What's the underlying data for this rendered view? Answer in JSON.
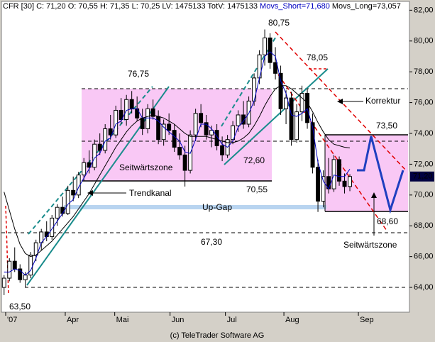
{
  "chart_data": {
    "type": "candlestick",
    "title": "CFR [30] C: 71,20 O: 70,55 H: 71,35 L: 70,25 LV: 1475133 TotV: 1475133",
    "ohlc": [
      [
        64.0,
        64.8,
        63.5,
        64.6
      ],
      [
        64.6,
        65.9,
        64.4,
        65.7
      ],
      [
        65.7,
        66.6,
        65.0,
        65.2
      ],
      [
        65.2,
        65.5,
        64.3,
        64.5
      ],
      [
        64.5,
        65.0,
        64.0,
        64.8
      ],
      [
        64.8,
        66.3,
        64.6,
        66.1
      ],
      [
        66.1,
        67.1,
        65.7,
        66.9
      ],
      [
        66.9,
        67.8,
        66.4,
        67.6
      ],
      [
        67.6,
        68.3,
        67.0,
        67.3
      ],
      [
        67.3,
        68.7,
        67.1,
        68.5
      ],
      [
        68.5,
        69.4,
        68.0,
        69.2
      ],
      [
        69.2,
        69.9,
        68.6,
        68.8
      ],
      [
        68.8,
        70.6,
        68.7,
        70.3
      ],
      [
        70.3,
        71.2,
        69.6,
        70.0
      ],
      [
        70.0,
        71.5,
        69.8,
        71.3
      ],
      [
        71.3,
        72.4,
        70.9,
        72.1
      ],
      [
        72.1,
        72.9,
        71.4,
        71.8
      ],
      [
        71.8,
        73.6,
        71.6,
        73.3
      ],
      [
        73.3,
        74.0,
        72.6,
        72.9
      ],
      [
        72.9,
        74.6,
        72.7,
        74.3
      ],
      [
        74.3,
        75.2,
        73.6,
        73.9
      ],
      [
        73.9,
        75.8,
        73.7,
        75.5
      ],
      [
        75.5,
        76.3,
        74.6,
        74.9
      ],
      [
        74.9,
        76.5,
        74.5,
        76.2
      ],
      [
        76.2,
        76.75,
        75.3,
        75.6
      ],
      [
        75.6,
        76.4,
        74.8,
        75.0
      ],
      [
        75.0,
        75.6,
        73.9,
        74.3
      ],
      [
        74.3,
        75.9,
        74.0,
        75.6
      ],
      [
        75.6,
        76.2,
        74.9,
        75.1
      ],
      [
        75.1,
        75.5,
        73.3,
        73.6
      ],
      [
        73.6,
        74.9,
        73.2,
        74.6
      ],
      [
        74.6,
        75.3,
        73.9,
        74.2
      ],
      [
        74.2,
        74.6,
        72.8,
        73.1
      ],
      [
        73.1,
        74.0,
        72.3,
        72.6
      ],
      [
        72.6,
        73.2,
        70.55,
        71.6
      ],
      [
        71.6,
        74.2,
        71.4,
        73.9
      ],
      [
        73.9,
        75.6,
        73.5,
        75.3
      ],
      [
        75.3,
        75.9,
        74.4,
        74.7
      ],
      [
        74.7,
        75.2,
        73.6,
        73.9
      ],
      [
        73.9,
        74.5,
        73.1,
        74.2
      ],
      [
        74.2,
        74.6,
        72.9,
        73.2
      ],
      [
        73.2,
        73.8,
        72.2,
        72.6
      ],
      [
        72.6,
        73.9,
        72.4,
        73.6
      ],
      [
        73.6,
        74.8,
        73.3,
        74.5
      ],
      [
        74.5,
        75.5,
        74.1,
        75.2
      ],
      [
        75.2,
        76.1,
        74.3,
        74.6
      ],
      [
        74.6,
        76.4,
        74.4,
        76.1
      ],
      [
        76.1,
        77.9,
        75.8,
        77.6
      ],
      [
        77.6,
        79.4,
        77.2,
        79.1
      ],
      [
        79.1,
        80.75,
        78.4,
        80.2
      ],
      [
        80.2,
        80.5,
        78.2,
        78.6
      ],
      [
        78.6,
        79.6,
        77.5,
        77.9
      ],
      [
        77.9,
        78.4,
        75.2,
        75.6
      ],
      [
        75.6,
        76.8,
        74.6,
        76.3
      ],
      [
        76.3,
        76.7,
        73.2,
        73.6
      ],
      [
        73.6,
        75.9,
        73.4,
        75.4
      ],
      [
        75.4,
        77.1,
        74.8,
        76.6
      ],
      [
        76.6,
        76.9,
        74.3,
        74.7
      ],
      [
        74.7,
        75.3,
        71.4,
        71.8
      ],
      [
        71.8,
        72.3,
        68.9,
        69.6
      ],
      [
        69.6,
        71.6,
        69.2,
        71.2
      ],
      [
        71.2,
        72.4,
        70.1,
        70.4
      ],
      [
        70.4,
        72.6,
        70.2,
        72.3
      ],
      [
        72.3,
        72.5,
        70.6,
        70.9
      ],
      [
        70.9,
        71.4,
        70.1,
        70.55
      ],
      [
        70.55,
        71.35,
        70.25,
        71.2
      ]
    ],
    "series": [
      {
        "name": "Movs_Short=71,680",
        "color": "#0000c0",
        "values": [
          65.0,
          65.0,
          65.2,
          65.1,
          64.8,
          65.1,
          65.9,
          66.9,
          67.3,
          67.8,
          68.3,
          68.8,
          69.4,
          69.7,
          70.5,
          71.1,
          71.7,
          72.4,
          72.7,
          73.5,
          73.7,
          74.6,
          74.8,
          75.5,
          75.6,
          75.6,
          75.0,
          75.0,
          75.0,
          74.8,
          74.4,
          74.1,
          73.8,
          73.5,
          72.8,
          72.7,
          73.6,
          74.6,
          74.6,
          74.3,
          73.8,
          73.3,
          73.1,
          73.5,
          74.4,
          74.8,
          75.3,
          76.1,
          77.6,
          79.0,
          79.3,
          79.0,
          77.4,
          76.6,
          75.2,
          75.1,
          75.3,
          75.6,
          74.4,
          72.1,
          70.9,
          70.4,
          71.3,
          71.2,
          71.2,
          71.68
        ]
      },
      {
        "name": "Movs_Long=73,057",
        "color": "#000000",
        "values": [
          70.2,
          69.0,
          67.8,
          66.8,
          66.2,
          66.0,
          66.1,
          66.4,
          66.7,
          67.0,
          67.4,
          67.8,
          68.2,
          68.6,
          69.1,
          69.6,
          70.1,
          70.7,
          71.3,
          71.9,
          72.5,
          73.1,
          73.6,
          74.1,
          74.5,
          74.8,
          75.0,
          75.1,
          75.2,
          75.1,
          75.0,
          74.8,
          74.6,
          74.3,
          74.0,
          73.8,
          73.8,
          73.8,
          73.8,
          73.7,
          73.6,
          73.5,
          73.4,
          73.4,
          73.5,
          73.7,
          74.0,
          74.5,
          75.1,
          75.8,
          76.4,
          76.9,
          77.1,
          77.1,
          76.9,
          76.6,
          76.3,
          76.0,
          75.4,
          74.7,
          74.1,
          73.6,
          73.3,
          73.2,
          73.1,
          73.057
        ]
      }
    ],
    "xlim": [
      -0.5,
      76.2
    ],
    "xticks": [
      {
        "value": 0.3,
        "label": "'07"
      },
      {
        "value": 11.5,
        "label": "Apr"
      },
      {
        "value": 20.8,
        "label": "Mai"
      },
      {
        "value": 31.2,
        "label": "Jun"
      },
      {
        "value": 41.6,
        "label": "Jul"
      },
      {
        "value": 52.6,
        "label": "Aug"
      },
      {
        "value": 66.6,
        "label": "Sep"
      }
    ],
    "ylim": [
      62.39,
      82.57
    ],
    "yticks": [
      {
        "value": 64,
        "label": "64,00"
      },
      {
        "value": 66,
        "label": "66,00"
      },
      {
        "value": 68,
        "label": "68,00"
      },
      {
        "value": 70,
        "label": "70,00"
      },
      {
        "value": 72,
        "label": "72,00"
      },
      {
        "value": 74,
        "label": "74,00"
      },
      {
        "value": 76,
        "label": "76,00"
      },
      {
        "value": 78,
        "label": "78,00"
      },
      {
        "value": 80,
        "label": "80,00"
      },
      {
        "value": 82,
        "label": "82,00"
      }
    ],
    "last_price": {
      "value": 71.2,
      "label": "71,20"
    },
    "annotations": [
      "80,75",
      "76,75",
      "78,05",
      "73,50",
      "72,60",
      "70,55",
      "68,60",
      "67,30",
      "63,50",
      "Seitwärtszone",
      "Trendkanal",
      "Up-Gap",
      "Korrektur",
      "Seitwärtszone"
    ],
    "footer": "(c) TeleTrader Software AG"
  }
}
